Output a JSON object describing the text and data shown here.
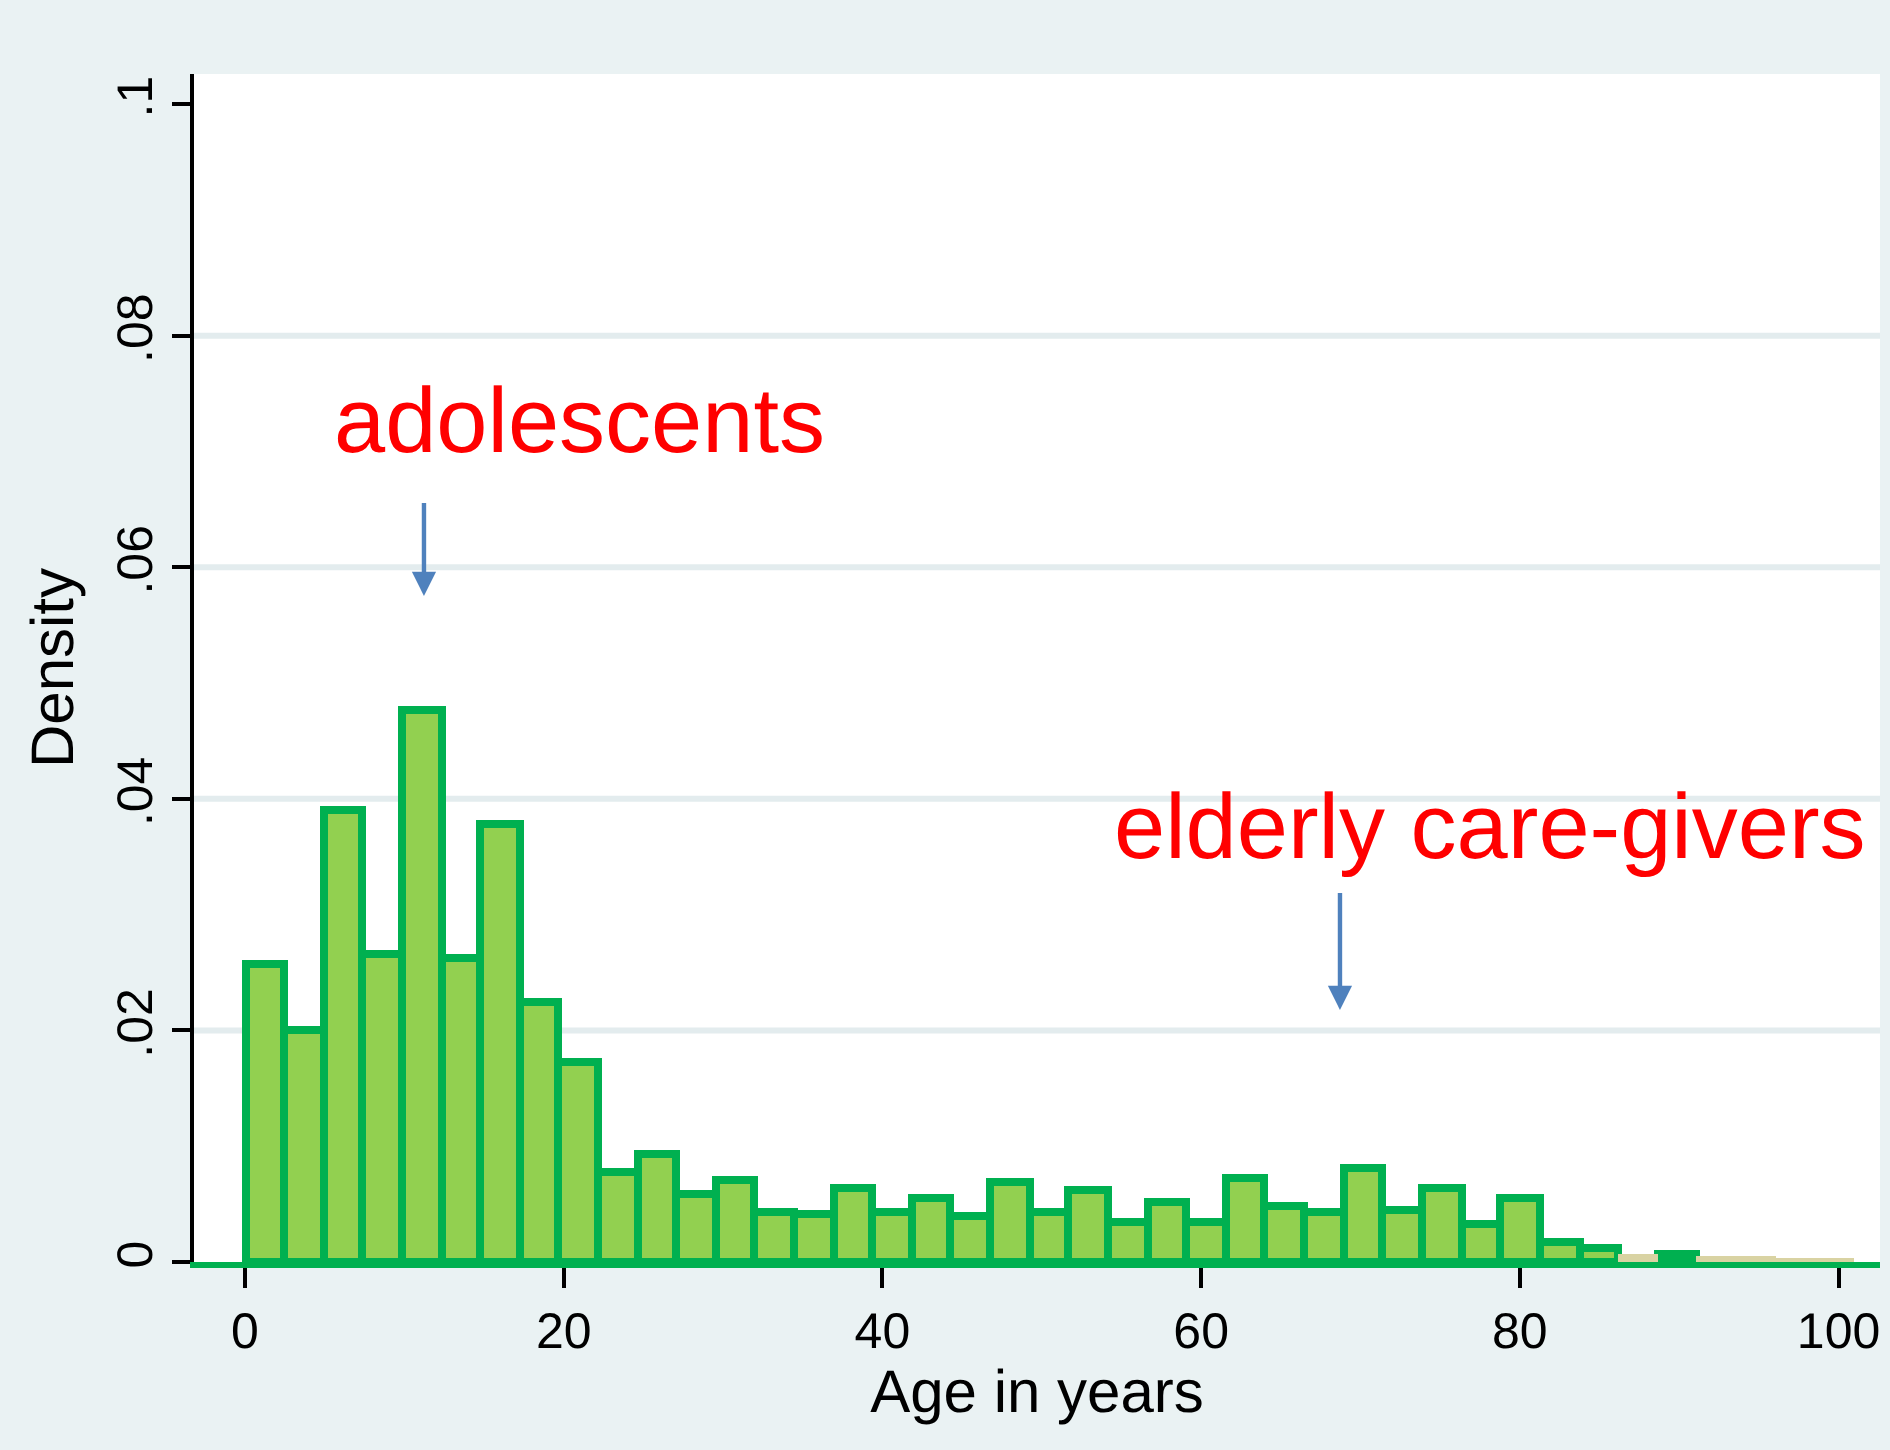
{
  "chart_data": {
    "type": "histogram",
    "xlabel": "Age in years",
    "ylabel": "Density",
    "bins": [
      0,
      2.5,
      4.9,
      7.4,
      9.9,
      12.3,
      14.8,
      17.2,
      19.7,
      22.2,
      24.6,
      27.1,
      29.6,
      32.0,
      34.5,
      37.0,
      39.4,
      41.9,
      44.3,
      46.8,
      49.3,
      51.7,
      54.2,
      56.7,
      59.1,
      61.6,
      64.0,
      66.5,
      69.0,
      71.4,
      73.9,
      76.4,
      78.8,
      81.3,
      83.8,
      86.2,
      88.7,
      91.1,
      93.6,
      96.1,
      98.5,
      101.0
    ],
    "series": [
      {
        "color": "#92d050",
        "values": [
          0.0258,
          0.02,
          0.039,
          0.0266,
          0.0477,
          0.0262,
          0.0378,
          0.0224,
          0.0173,
          0.0078,
          0.0094,
          0.0058,
          0.007,
          0.0044,
          0.0042,
          0.0064,
          0.0043,
          0.0056,
          0.0039,
          0.0069,
          0.0043,
          0.0062,
          0.0034,
          0.0051,
          0.0035,
          0.0073,
          0.0049,
          0.0044,
          0.0082,
          0.0045,
          0.0064,
          0.0032,
          0.0055,
          0.0017,
          0.0012,
          null,
          0.0007,
          null,
          null,
          null,
          null
        ]
      },
      {
        "color": "#d9d3a3",
        "values": [
          null,
          null,
          null,
          null,
          null,
          null,
          null,
          null,
          null,
          null,
          null,
          null,
          null,
          null,
          null,
          null,
          null,
          null,
          null,
          null,
          null,
          null,
          null,
          null,
          null,
          null,
          null,
          null,
          null,
          null,
          null,
          null,
          null,
          null,
          null,
          0.0007,
          null,
          0.0006,
          0.0005,
          0.0003,
          0.0003
        ]
      }
    ],
    "xlim": [
      -3.2,
      102.6
    ],
    "xticks": [
      0,
      20,
      40,
      60,
      80,
      100
    ],
    "ylim": [
      0,
      0.1026
    ],
    "yticks": [
      0,
      {
        "value": 0.02,
        "label": ".02"
      },
      {
        "value": 0.04,
        "label": ".04"
      },
      {
        "value": 0.06,
        "label": ".06"
      },
      {
        "value": 0.08,
        "label": ".08"
      },
      {
        "value": 0.1,
        "label": ".1"
      }
    ],
    "grid": "y",
    "annotations": [
      "adolescents",
      "elderly care-givers"
    ]
  }
}
